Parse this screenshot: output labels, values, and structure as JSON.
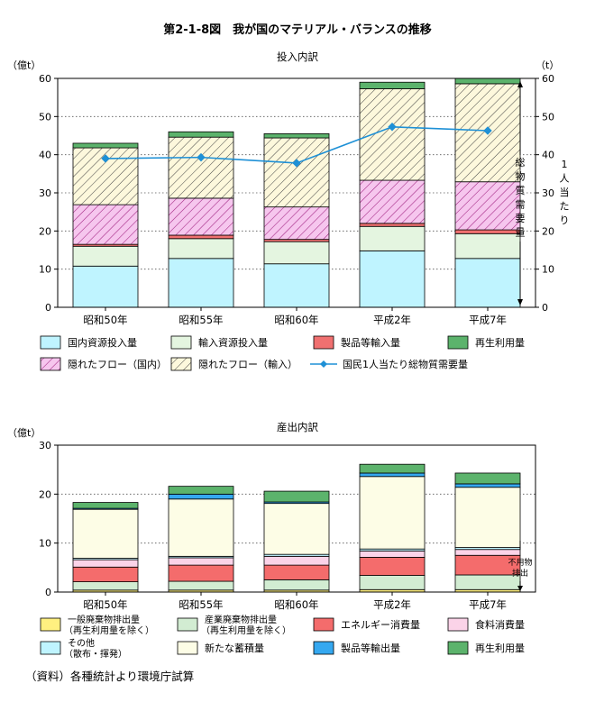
{
  "title": "第2-1-8図　我が国のマテリアル・バランスの推移",
  "source_note": "（資料）各種統計より環境庁試算",
  "chart_data": [
    {
      "type": "bar",
      "stacked": true,
      "subtitle": "投入内訳",
      "y_unit_left": "（億t）",
      "y_unit_right": "（t）",
      "ylim": [
        0,
        60
      ],
      "yticks": [
        0,
        10,
        20,
        30,
        40,
        50,
        60
      ],
      "grid": "dotted-horizontal",
      "legend_position": "bottom",
      "categories": [
        "昭和50年",
        "昭和55年",
        "昭和60年",
        "平成2年",
        "平成7年"
      ],
      "series": [
        {
          "name": "国内資源投入量",
          "values": [
            10.8,
            12.8,
            11.4,
            14.8,
            12.8
          ],
          "color": "#bff4ff",
          "pattern": "none"
        },
        {
          "name": "輸入資源投入量",
          "values": [
            5.2,
            5.2,
            5.8,
            6.4,
            6.5
          ],
          "color": "#e4f5e0",
          "pattern": "none"
        },
        {
          "name": "製品等輸入量",
          "values": [
            0.5,
            0.9,
            0.6,
            0.8,
            1.0
          ],
          "color": "#f07070",
          "pattern": "none"
        },
        {
          "name": "隠れたフロー（国内）",
          "values": [
            10.4,
            9.7,
            8.5,
            11.3,
            12.6
          ],
          "color": "#f6c6ee",
          "pattern": "hatch-magenta"
        },
        {
          "name": "隠れたフロー（輸入）",
          "values": [
            14.9,
            16.0,
            18.1,
            24.0,
            25.7
          ],
          "color": "#fdf8dc",
          "pattern": "hatch-olive"
        },
        {
          "name": "再生利用量",
          "values": [
            1.2,
            1.4,
            1.1,
            1.7,
            1.4
          ],
          "color": "#5cb36c",
          "pattern": "none"
        }
      ],
      "line_series": {
        "name": "国民1人当たり総物質需要量",
        "axis": "right",
        "ylim": [
          0,
          60
        ],
        "values": [
          39,
          39.3,
          37.8,
          47.3,
          46.3
        ],
        "color": "#1e90d6"
      },
      "annotations": {
        "bracket_label": "総物質需要量",
        "right_axis_label": "1人当たり"
      }
    },
    {
      "type": "bar",
      "stacked": true,
      "subtitle": "産出内訳",
      "y_unit_left": "（億t）",
      "ylim": [
        0,
        30
      ],
      "yticks": [
        0,
        10,
        20,
        30
      ],
      "grid": "dotted-horizontal",
      "legend_position": "bottom",
      "categories": [
        "昭和50年",
        "昭和55年",
        "昭和60年",
        "平成2年",
        "平成7年"
      ],
      "series": [
        {
          "name": "一般廃棄物排出量（再生利用量を除く）",
          "values": [
            0.4,
            0.4,
            0.4,
            0.5,
            0.5
          ],
          "color": "#fff080"
        },
        {
          "name": "産業廃棄物排出量（再生利用量を除く）",
          "values": [
            1.7,
            1.8,
            2.1,
            2.9,
            3.0
          ],
          "color": "#d2ecd2"
        },
        {
          "name": "エネルギー消費量",
          "values": [
            3.0,
            3.3,
            3.0,
            3.7,
            4.0
          ],
          "color": "#f46c6c"
        },
        {
          "name": "食料消費量",
          "values": [
            1.5,
            1.5,
            1.8,
            1.3,
            1.2
          ],
          "color": "#fbd3e8"
        },
        {
          "name": "その他（散布・揮発）",
          "values": [
            0.3,
            0.3,
            0.4,
            0.4,
            0.4
          ],
          "color": "#bff4ff"
        },
        {
          "name": "新たな蓄積量",
          "values": [
            10.0,
            11.7,
            10.4,
            14.8,
            12.3
          ],
          "color": "#fdfde6"
        },
        {
          "name": "製品等輸出量",
          "values": [
            0.2,
            1.0,
            0.3,
            0.7,
            0.7
          ],
          "color": "#35a8f0"
        },
        {
          "name": "再生利用量",
          "values": [
            1.2,
            1.6,
            2.2,
            1.8,
            2.2
          ],
          "color": "#5cb36c"
        }
      ],
      "annotations": {
        "bracket_label_line1": "不用物",
        "bracket_label_line2": "排出"
      }
    }
  ]
}
